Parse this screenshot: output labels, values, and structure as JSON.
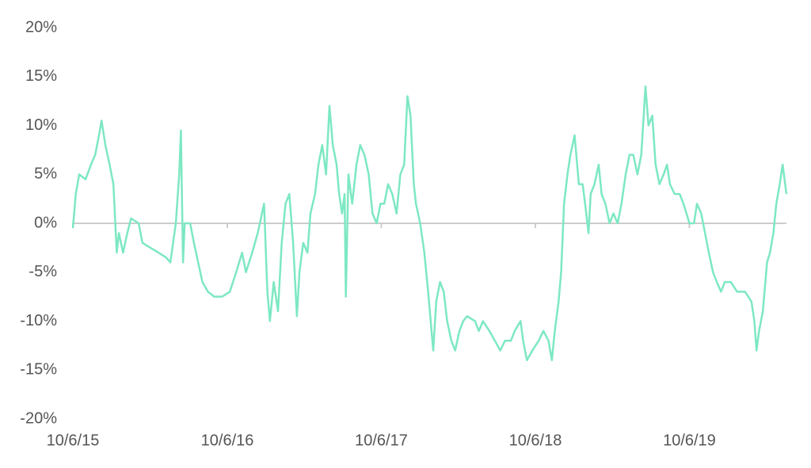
{
  "chart_data": {
    "type": "line",
    "x": [
      "2015-10-06",
      "2015-10-13",
      "2015-10-21",
      "2015-11-05",
      "2015-11-18",
      "2015-11-28",
      "2015-12-07",
      "2015-12-13",
      "2015-12-22",
      "2016-01-01",
      "2016-01-10",
      "2016-01-18",
      "2016-01-23",
      "2016-02-02",
      "2016-02-12",
      "2016-02-21",
      "2016-03-10",
      "2016-03-19",
      "2016-04-07",
      "2016-04-26",
      "2016-05-14",
      "2016-05-24",
      "2016-06-06",
      "2016-06-14",
      "2016-06-18",
      "2016-06-23",
      "2016-06-27",
      "2016-07-10",
      "2016-07-19",
      "2016-07-29",
      "2016-08-08",
      "2016-08-21",
      "2016-09-05",
      "2016-09-24",
      "2016-10-12",
      "2016-10-27",
      "2016-11-10",
      "2016-11-19",
      "2016-12-04",
      "2016-12-17",
      "2017-01-01",
      "2017-01-09",
      "2017-01-15",
      "2017-01-24",
      "2017-02-03",
      "2017-02-12",
      "2017-02-21",
      "2017-03-02",
      "2017-03-11",
      "2017-03-20",
      "2017-03-26",
      "2017-04-04",
      "2017-04-14",
      "2017-04-21",
      "2017-05-02",
      "2017-05-10",
      "2017-05-19",
      "2017-05-28",
      "2017-06-05",
      "2017-06-13",
      "2017-06-22",
      "2017-06-28",
      "2017-07-05",
      "2017-07-11",
      "2017-07-14",
      "2017-07-20",
      "2017-07-29",
      "2017-08-08",
      "2017-08-17",
      "2017-08-27",
      "2017-09-06",
      "2017-09-15",
      "2017-09-25",
      "2017-10-04",
      "2017-10-13",
      "2017-10-22",
      "2017-11-01",
      "2017-11-11",
      "2017-11-20",
      "2017-11-29",
      "2017-12-07",
      "2017-12-14",
      "2017-12-22",
      "2017-12-27",
      "2018-01-06",
      "2018-01-16",
      "2018-01-25",
      "2018-01-31",
      "2018-02-06",
      "2018-02-13",
      "2018-02-22",
      "2018-03-03",
      "2018-03-11",
      "2018-03-21",
      "2018-03-30",
      "2018-04-09",
      "2018-04-18",
      "2018-04-27",
      "2018-05-16",
      "2018-05-25",
      "2018-06-04",
      "2018-06-19",
      "2018-07-02",
      "2018-07-15",
      "2018-07-26",
      "2018-08-09",
      "2018-08-18",
      "2018-09-01",
      "2018-09-07",
      "2018-09-16",
      "2018-09-29",
      "2018-10-14",
      "2018-10-25",
      "2018-11-06",
      "2018-11-14",
      "2018-11-21",
      "2018-11-30",
      "2018-12-06",
      "2018-12-13",
      "2018-12-21",
      "2018-12-28",
      "2019-01-07",
      "2019-01-17",
      "2019-01-26",
      "2019-02-01",
      "2019-02-09",
      "2019-02-14",
      "2019-02-23",
      "2019-03-05",
      "2019-03-12",
      "2019-03-21",
      "2019-03-31",
      "2019-04-09",
      "2019-04-19",
      "2019-04-28",
      "2019-05-08",
      "2019-05-17",
      "2019-05-26",
      "2019-06-05",
      "2019-06-14",
      "2019-06-24",
      "2019-07-01",
      "2019-07-10",
      "2019-07-18",
      "2019-07-27",
      "2019-08-06",
      "2019-08-14",
      "2019-08-21",
      "2019-09-01",
      "2019-09-13",
      "2019-09-22",
      "2019-10-06",
      "2019-10-17",
      "2019-10-24",
      "2019-11-03",
      "2019-11-12",
      "2019-11-21",
      "2019-12-01",
      "2019-12-10",
      "2019-12-20",
      "2019-12-29",
      "2020-01-12",
      "2020-01-27",
      "2020-02-15",
      "2020-03-01",
      "2020-03-08",
      "2020-03-13",
      "2020-03-19",
      "2020-03-28",
      "2020-04-07",
      "2020-04-14",
      "2020-04-22",
      "2020-04-29",
      "2020-05-07",
      "2020-05-14",
      "2020-05-23"
    ],
    "series": [
      {
        "color": "#7de8c2",
        "values": [
          -0.5,
          3,
          5,
          4.5,
          6,
          7,
          9,
          10.5,
          8,
          6,
          4,
          -3,
          -1,
          -3,
          -1,
          0.5,
          0,
          -2,
          -2.5,
          -3,
          -3.5,
          -4,
          0,
          5,
          9.5,
          -4,
          0,
          0,
          -2,
          -4,
          -6,
          -7,
          -7.5,
          -7.5,
          -7,
          -5,
          -3,
          -5,
          -3,
          -1,
          2,
          -7,
          -10,
          -6,
          -9,
          -2,
          2,
          3,
          -2,
          -9.5,
          -5,
          -2,
          -3,
          1,
          3,
          6,
          8,
          5,
          12,
          8,
          6,
          3,
          1,
          3,
          -7.5,
          5,
          2,
          6,
          8,
          7,
          5,
          1,
          0,
          2,
          2,
          4,
          3,
          1,
          5,
          6,
          13,
          11,
          4,
          2,
          0,
          -3,
          -7,
          -10,
          -13,
          -8,
          -6,
          -7,
          -10,
          -12,
          -13,
          -11,
          -10,
          -9.5,
          -10,
          -11,
          -10,
          -11,
          -12,
          -13,
          -12,
          -12,
          -11,
          -10,
          -12,
          -14,
          -13,
          -12,
          -11,
          -12,
          -14,
          -11,
          -8,
          -5,
          2,
          5,
          7,
          9,
          4,
          4,
          2,
          -1,
          3,
          4,
          6,
          3,
          2,
          0,
          1,
          0,
          2,
          5,
          7,
          7,
          5,
          7,
          14,
          10,
          11,
          6,
          4,
          5,
          6,
          4,
          3,
          3,
          2,
          0,
          0,
          2,
          1,
          -1,
          -3,
          -5,
          -6,
          -7,
          -6,
          -6,
          -7,
          -7,
          -8,
          -10,
          -13,
          -11,
          -9,
          -4,
          -3,
          -1,
          2,
          4,
          6,
          3
        ]
      }
    ],
    "xlim": [
      "2015-10-06",
      "2020-05-23"
    ],
    "xticks": [
      {
        "value": "2015-10-06",
        "label": "10/6/15"
      },
      {
        "value": "2016-10-06",
        "label": "10/6/16"
      },
      {
        "value": "2017-10-06",
        "label": "10/6/17"
      },
      {
        "value": "2018-10-06",
        "label": "10/6/18"
      },
      {
        "value": "2019-10-06",
        "label": "10/6/19"
      }
    ],
    "ylim": [
      -20,
      20
    ],
    "yticks": [
      {
        "value": -20,
        "label": "-20%"
      },
      {
        "value": -15,
        "label": "-15%"
      },
      {
        "value": -10,
        "label": "-10%"
      },
      {
        "value": -5,
        "label": "-5%"
      },
      {
        "value": 0,
        "label": "0%"
      },
      {
        "value": 5,
        "label": "5%"
      },
      {
        "value": 10,
        "label": "10%"
      },
      {
        "value": 15,
        "label": "15%"
      },
      {
        "value": 20,
        "label": "20%"
      }
    ],
    "zero_line": true
  }
}
